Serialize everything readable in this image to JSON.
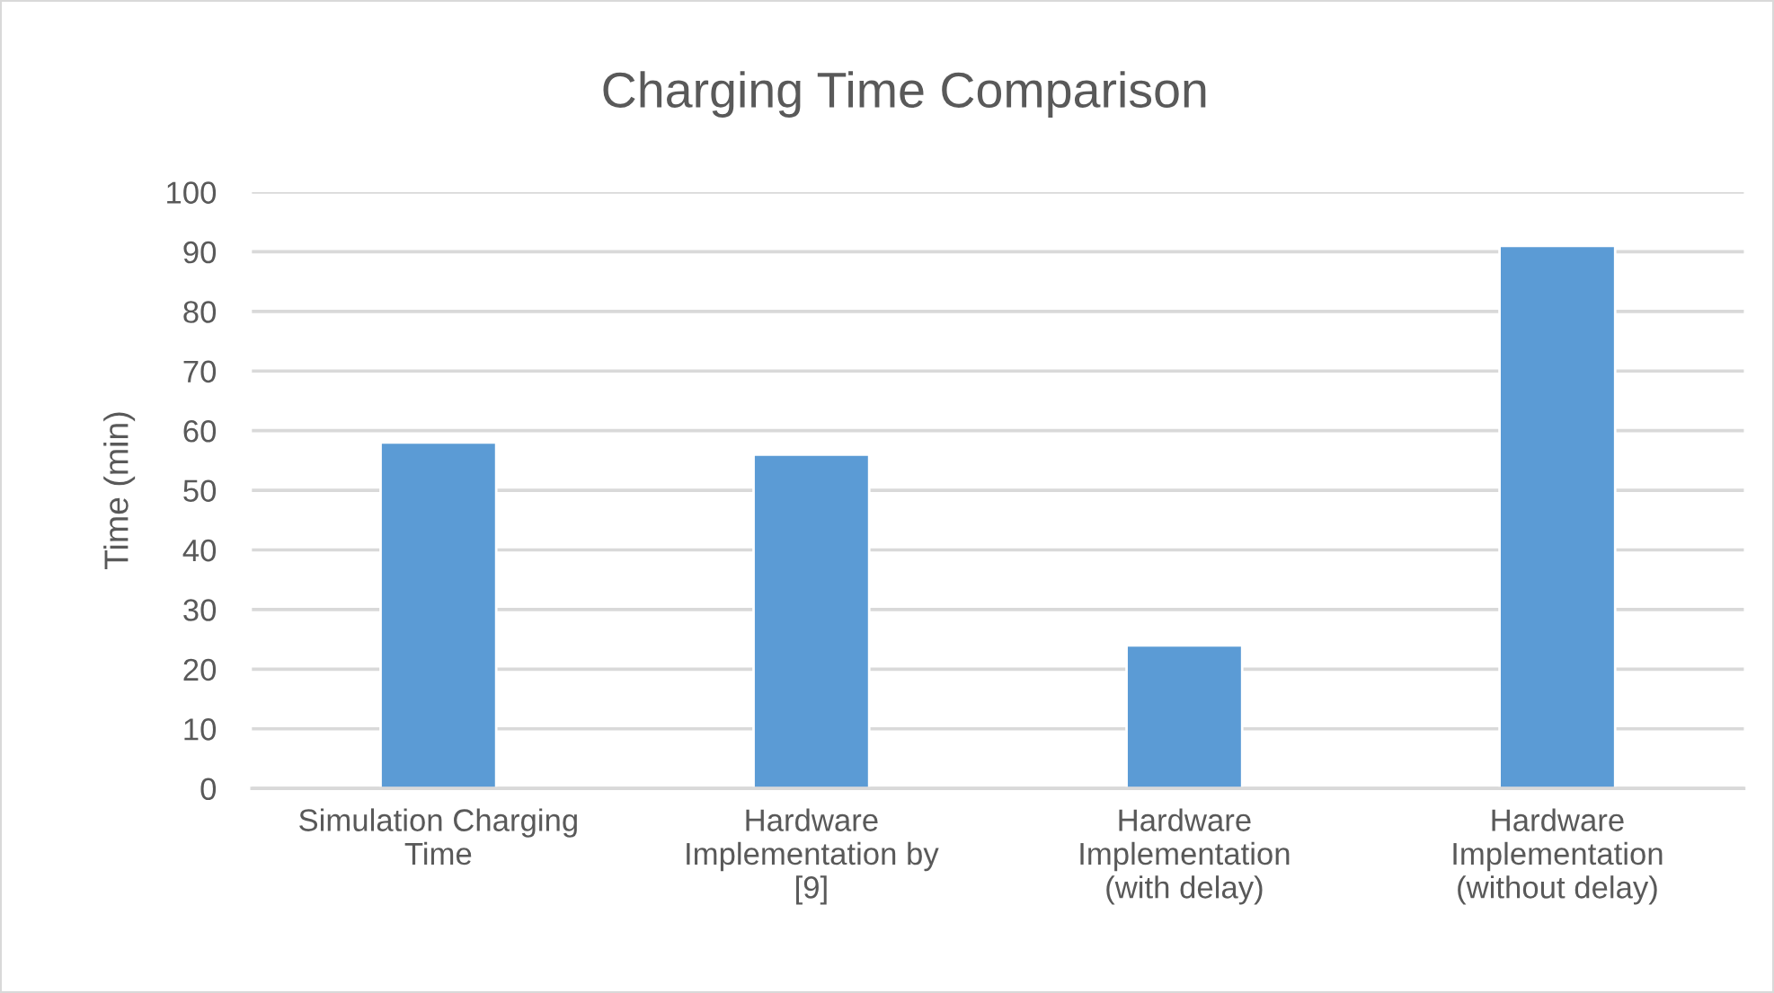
{
  "chart_data": {
    "type": "bar",
    "title": "Charging Time Comparison",
    "ylabel": "Time (min)",
    "categories": [
      "Simulation Charging Time",
      "Hardware Implementation by [9]",
      "Hardware Implementation (with delay)",
      "Hardware Implementation (without delay)"
    ],
    "values": [
      58,
      56,
      24,
      91
    ],
    "color": "#5b9bd5",
    "ylim": [
      0,
      100
    ],
    "yticks": [
      0,
      10,
      20,
      30,
      40,
      50,
      60,
      70,
      80,
      90,
      100
    ],
    "grid": "y"
  }
}
